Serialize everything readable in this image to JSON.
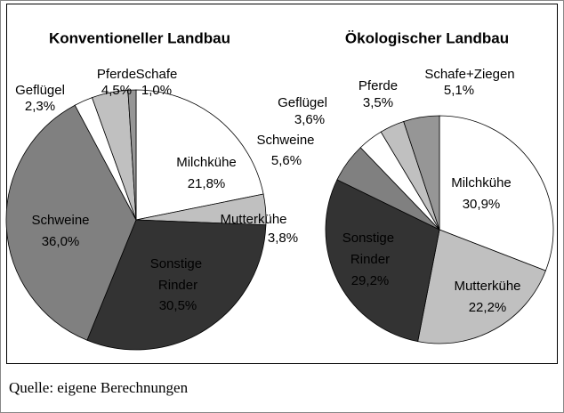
{
  "chart_data": [
    {
      "type": "pie",
      "title": "Konventioneller Landbau",
      "categories": [
        "Milchkühe",
        "Mutterkühe",
        "Sonstige Rinder",
        "Schweine",
        "Geflügel",
        "Pferde",
        "Schafe"
      ],
      "values": [
        21.8,
        3.8,
        30.5,
        36.0,
        2.3,
        4.5,
        1.0
      ],
      "value_labels": [
        "21,8%",
        "3,8%",
        "30,5%",
        "36,0%",
        "2,3%",
        "4,5%",
        "1,0%"
      ],
      "colors": [
        "#ffffff",
        "#c0c0c0",
        "#333333",
        "#808080",
        "#ffffff",
        "#c0c0c0",
        "#969696"
      ]
    },
    {
      "type": "pie",
      "title": "Ökologischer Landbau",
      "categories": [
        "Milchkühe",
        "Mutterkühe",
        "Sonstige Rinder",
        "Schweine",
        "Geflügel",
        "Pferde",
        "Schafe+Ziegen"
      ],
      "values": [
        30.9,
        22.2,
        29.2,
        5.6,
        3.6,
        3.5,
        5.1
      ],
      "value_labels": [
        "30,9%",
        "22,2%",
        "29,2%",
        "5,6%",
        "3,6%",
        "3,5%",
        "5,1%"
      ],
      "colors": [
        "#ffffff",
        "#c0c0c0",
        "#333333",
        "#808080",
        "#ffffff",
        "#c0c0c0",
        "#969696"
      ]
    }
  ],
  "source": "Quelle: eigene Berechnungen"
}
